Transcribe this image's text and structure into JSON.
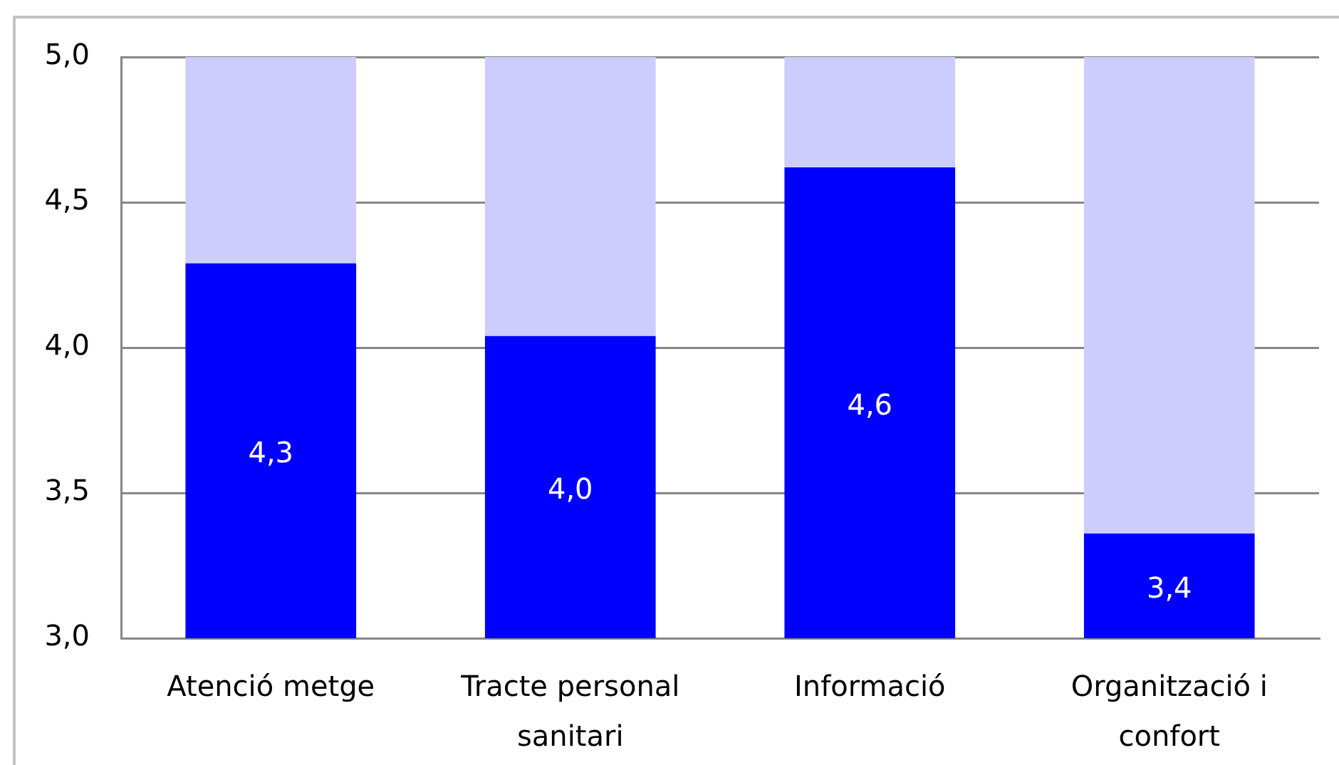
{
  "chart_data": {
    "type": "bar",
    "categories": [
      "Atenció metge",
      "Tracte personal sanitari",
      "Informació",
      "Organització i confort"
    ],
    "series": [
      {
        "color": "#0000ff",
        "values": [
          4.29,
          4.04,
          4.62,
          3.36
        ],
        "value_labels": [
          "4,3",
          "4,0",
          "4,6",
          "3,4"
        ]
      },
      {
        "color": "#ccccff",
        "base": [
          4.29,
          4.04,
          4.62,
          3.36
        ],
        "values": [
          0.71,
          0.96,
          0.38,
          1.64
        ]
      }
    ],
    "stacked": true,
    "ylim": [
      3,
      5
    ],
    "yticks": [
      {
        "value": 3,
        "label": "3,0"
      },
      {
        "value": 3.5,
        "label": "3,5"
      },
      {
        "value": 4,
        "label": "4,0"
      },
      {
        "value": 4.5,
        "label": "4,5"
      },
      {
        "value": 5,
        "label": "5,0"
      }
    ],
    "grid": "y"
  }
}
